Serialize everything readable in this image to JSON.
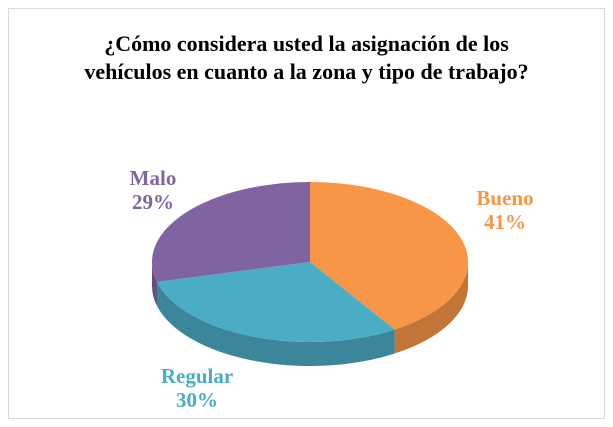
{
  "chart_data": {
    "type": "pie",
    "title": "¿Cómo considera usted la asignación de los vehículos en cuanto a la zona y tipo de trabajo?",
    "categories": [
      "Bueno",
      "Regular",
      "Malo"
    ],
    "values": [
      41,
      30,
      29
    ],
    "value_labels": [
      "41%",
      "30%",
      "29%"
    ],
    "colors": [
      "#F79646",
      "#4BACC6",
      "#8064A2"
    ]
  }
}
